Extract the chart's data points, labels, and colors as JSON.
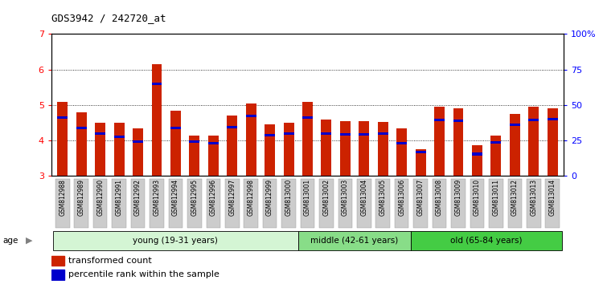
{
  "title": "GDS3942 / 242720_at",
  "samples": [
    "GSM812988",
    "GSM812989",
    "GSM812990",
    "GSM812991",
    "GSM812992",
    "GSM812993",
    "GSM812994",
    "GSM812995",
    "GSM812996",
    "GSM812997",
    "GSM812998",
    "GSM812999",
    "GSM813000",
    "GSM813001",
    "GSM813002",
    "GSM813003",
    "GSM813004",
    "GSM813005",
    "GSM813006",
    "GSM813007",
    "GSM813008",
    "GSM813009",
    "GSM813010",
    "GSM813011",
    "GSM813012",
    "GSM813013",
    "GSM813014"
  ],
  "red_values": [
    5.08,
    4.8,
    4.5,
    4.5,
    4.35,
    6.15,
    4.85,
    4.15,
    4.15,
    4.7,
    5.05,
    4.45,
    4.5,
    5.08,
    4.6,
    4.55,
    4.55,
    4.52,
    4.35,
    3.75,
    4.95,
    4.9,
    3.88,
    4.15,
    4.75,
    4.95,
    4.9
  ],
  "blue_values": [
    4.65,
    4.35,
    4.2,
    4.1,
    3.98,
    5.6,
    4.35,
    3.98,
    3.92,
    4.38,
    4.7,
    4.15,
    4.2,
    4.65,
    4.2,
    4.18,
    4.18,
    4.2,
    3.92,
    3.68,
    4.58,
    4.55,
    3.62,
    3.95,
    4.45,
    4.58,
    4.6
  ],
  "groups": [
    {
      "label": "young (19-31 years)",
      "start": 0,
      "end": 13,
      "color": "#d4f5d4"
    },
    {
      "label": "middle (42-61 years)",
      "start": 13,
      "end": 19,
      "color": "#88dd88"
    },
    {
      "label": "old (65-84 years)",
      "start": 19,
      "end": 27,
      "color": "#44cc44"
    }
  ],
  "ylim": [
    3.0,
    7.0
  ],
  "yticks_left": [
    3,
    4,
    5,
    6,
    7
  ],
  "yticks_right_vals": [
    0,
    25,
    50,
    75,
    100
  ],
  "yticks_right_labels": [
    "0",
    "25",
    "50",
    "75",
    "100%"
  ],
  "bar_color": "#cc2200",
  "blue_color": "#0000cc",
  "bar_width": 0.55,
  "tick_bg_color": "#cccccc",
  "legend_red": "transformed count",
  "legend_blue": "percentile rank within the sample"
}
